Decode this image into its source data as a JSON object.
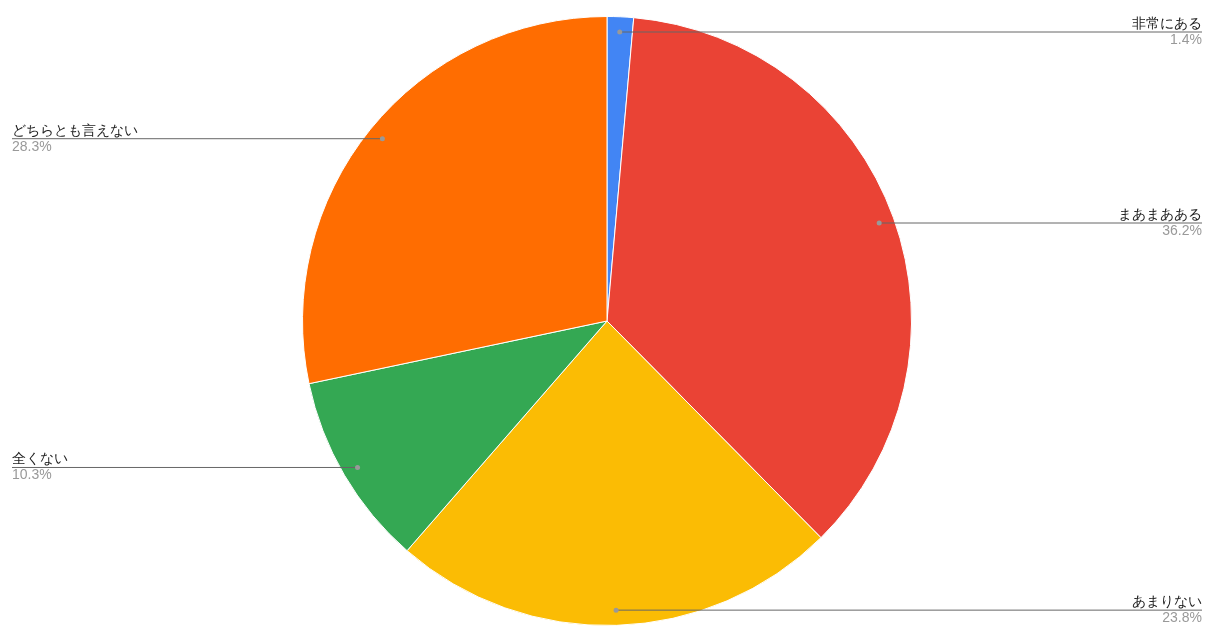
{
  "chart_data": {
    "type": "pie",
    "categories": [
      "非常にある",
      "まあまあある",
      "あまりない",
      "全くない",
      "どちらとも言えない"
    ],
    "values": [
      1.4,
      36.2,
      23.8,
      10.3,
      28.3
    ],
    "value_labels": [
      "1.4%",
      "36.2%",
      "23.8%",
      "10.3%",
      "28.3%"
    ],
    "colors": [
      "#4285f4",
      "#ea4335",
      "#fbbc04",
      "#34a853",
      "#ff6d01"
    ],
    "legend": false
  }
}
